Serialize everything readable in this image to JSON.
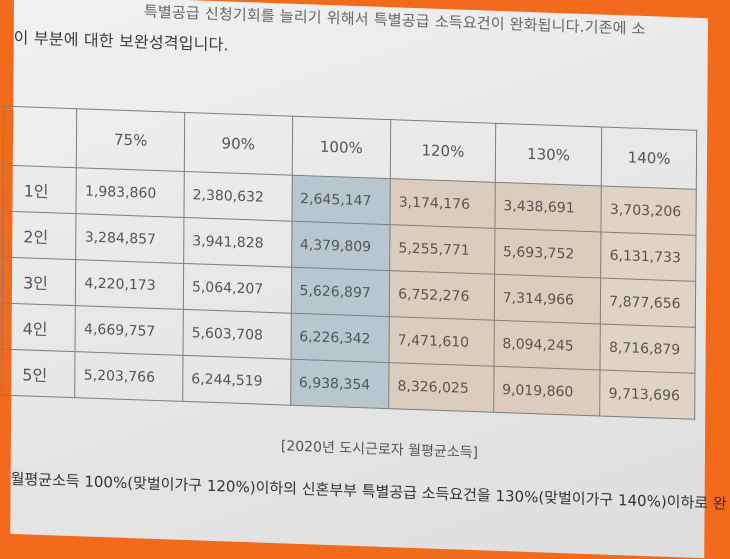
{
  "text_top": {
    "line1": "특별공급 신청기회를 늘리기 위해서 특별공급 소득요건이 완화됩니다.기존에 소",
    "line2": "이 부분에 대한 보완성격입니다."
  },
  "table": {
    "headers": [
      "",
      "75%",
      "90%",
      "100%",
      "120%",
      "130%",
      "140%"
    ],
    "rows": [
      {
        "label": "1인",
        "values": [
          "1,983,860",
          "2,380,632",
          "2,645,147",
          "3,174,176",
          "3,438,691",
          "3,703,206"
        ]
      },
      {
        "label": "2인",
        "values": [
          "3,284,857",
          "3,941,828",
          "4,379,809",
          "5,255,771",
          "5,693,752",
          "6,131,733"
        ]
      },
      {
        "label": "3인",
        "values": [
          "4,220,173",
          "5,064,207",
          "5,626,897",
          "6,752,276",
          "7,314,966",
          "7,877,656"
        ]
      },
      {
        "label": "4인",
        "values": [
          "4,669,757",
          "5,603,708",
          "6,226,342",
          "7,471,610",
          "8,094,245",
          "8,716,879"
        ]
      },
      {
        "label": "5인",
        "values": [
          "5,203,766",
          "6,244,519",
          "6,938,354",
          "8,326,025",
          "9,019,860",
          "9,713,696"
        ]
      }
    ]
  },
  "caption": "[2020년 도시근로자 월평균소득]",
  "text_bottom": "월평균소득 100%(맞벌이가구 120%)이하의 신혼부부 특별공급 소득요건을 130%(맞벌이가구 140%)이하로 완"
}
